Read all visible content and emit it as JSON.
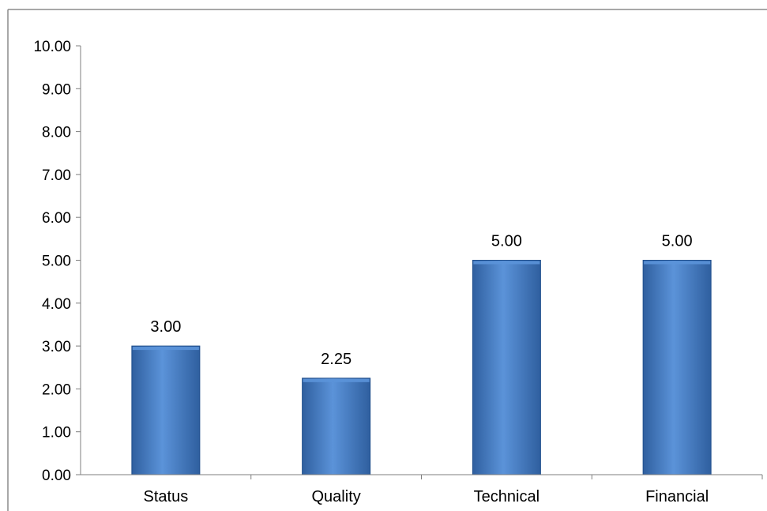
{
  "colors": {
    "bar_fill_top": "#5b93d9",
    "bar_fill_mid": "#4a80c8",
    "bar_fill_bottom": "#2f5f9f",
    "bar_edge": "#1f4e8c",
    "axis": "#7f7f7f",
    "frame": "#8c8c8c"
  },
  "chart_data": {
    "type": "bar",
    "categories": [
      "Status",
      "Quality",
      "Technical",
      "Financial"
    ],
    "values": [
      3.0,
      2.25,
      5.0,
      5.0
    ],
    "value_labels": [
      "3.00",
      "2.25",
      "5.00",
      "5.00"
    ],
    "ylim": [
      0,
      10
    ],
    "ytick_values": [
      0,
      1,
      2,
      3,
      4,
      5,
      6,
      7,
      8,
      9,
      10
    ],
    "yticks": [
      "0.00",
      "1.00",
      "2.00",
      "3.00",
      "4.00",
      "5.00",
      "6.00",
      "7.00",
      "8.00",
      "9.00",
      "10.00"
    ],
    "title": "",
    "xlabel": "",
    "ylabel": "",
    "grid": false,
    "legend": "none"
  }
}
